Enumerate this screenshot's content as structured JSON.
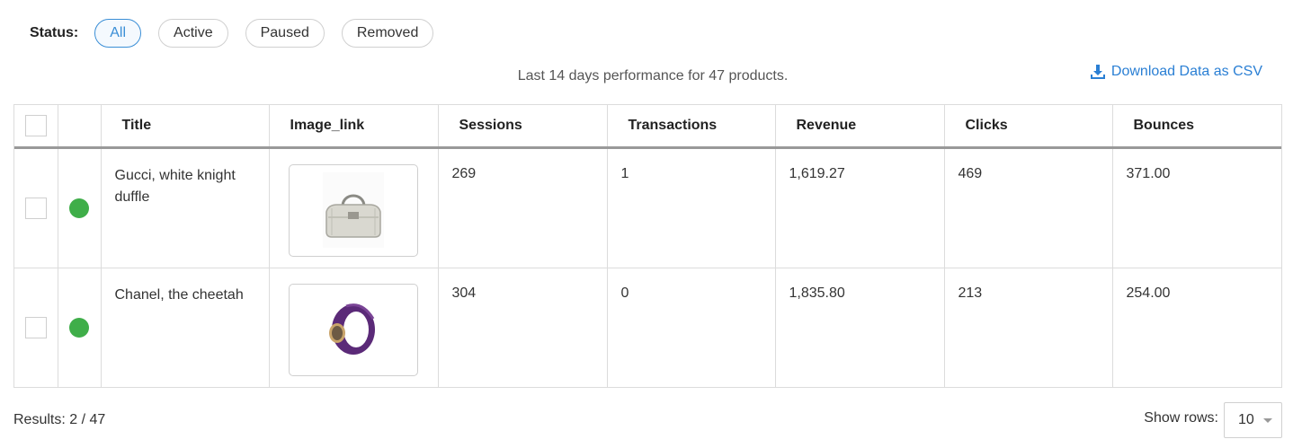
{
  "filters": {
    "label": "Status:",
    "options": [
      "All",
      "Active",
      "Paused",
      "Removed"
    ],
    "selected": "All"
  },
  "summary_text": "Last 14 days performance for 47 products.",
  "download_label": "Download Data as CSV",
  "table": {
    "columns": [
      "Title",
      "Image_link",
      "Sessions",
      "Transactions",
      "Revenue",
      "Clicks",
      "Bounces"
    ],
    "rows": [
      {
        "status": "active",
        "title": "Gucci, white knight duffle",
        "image": "white-duffle-bag-icon",
        "sessions": "269",
        "transactions": "1",
        "revenue": "1,619.27",
        "clicks": "469",
        "bounces": "371.00"
      },
      {
        "status": "active",
        "title": "Chanel, the cheetah",
        "image": "purple-bangle-icon",
        "sessions": "304",
        "transactions": "0",
        "revenue": "1,835.80",
        "clicks": "213",
        "bounces": "254.00"
      }
    ]
  },
  "footer": {
    "results": "Results: 2 / 47",
    "rows_label": "Show rows:",
    "rows_value": "10"
  },
  "colors": {
    "accent": "#3a8ed6",
    "status_active": "#3fae49"
  }
}
